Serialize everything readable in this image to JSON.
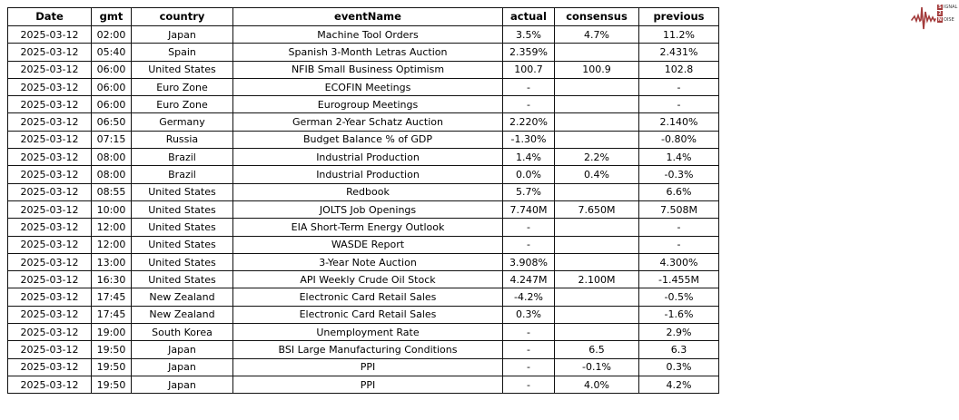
{
  "chart_data": {
    "type": "table",
    "title": "",
    "columns": [
      "Date",
      "gmt",
      "country",
      "eventName",
      "actual",
      "consensus",
      "previous"
    ],
    "rows": [
      [
        "2025-03-12",
        "02:00",
        "Japan",
        "Machine Tool Orders",
        "3.5%",
        "4.7%",
        "11.2%"
      ],
      [
        "2025-03-12",
        "05:40",
        "Spain",
        "Spanish 3-Month Letras Auction",
        "2.359%",
        "",
        "2.431%"
      ],
      [
        "2025-03-12",
        "06:00",
        "United States",
        "NFIB Small Business Optimism",
        "100.7",
        "100.9",
        "102.8"
      ],
      [
        "2025-03-12",
        "06:00",
        "Euro Zone",
        "ECOFIN Meetings",
        "-",
        "",
        "-"
      ],
      [
        "2025-03-12",
        "06:00",
        "Euro Zone",
        "Eurogroup Meetings",
        "-",
        "",
        "-"
      ],
      [
        "2025-03-12",
        "06:50",
        "Germany",
        "German 2-Year Schatz Auction",
        "2.220%",
        "",
        "2.140%"
      ],
      [
        "2025-03-12",
        "07:15",
        "Russia",
        "Budget Balance % of GDP",
        "-1.30%",
        "",
        "-0.80%"
      ],
      [
        "2025-03-12",
        "08:00",
        "Brazil",
        "Industrial Production",
        "1.4%",
        "2.2%",
        "1.4%"
      ],
      [
        "2025-03-12",
        "08:00",
        "Brazil",
        "Industrial Production",
        "0.0%",
        "0.4%",
        "-0.3%"
      ],
      [
        "2025-03-12",
        "08:55",
        "United States",
        "Redbook",
        "5.7%",
        "",
        "6.6%"
      ],
      [
        "2025-03-12",
        "10:00",
        "United States",
        "JOLTS Job Openings",
        "7.740M",
        "7.650M",
        "7.508M"
      ],
      [
        "2025-03-12",
        "12:00",
        "United States",
        "EIA Short-Term Energy Outlook",
        "-",
        "",
        "-"
      ],
      [
        "2025-03-12",
        "12:00",
        "United States",
        "WASDE Report",
        "-",
        "",
        "-"
      ],
      [
        "2025-03-12",
        "13:00",
        "United States",
        "3-Year Note Auction",
        "3.908%",
        "",
        "4.300%"
      ],
      [
        "2025-03-12",
        "16:30",
        "United States",
        "API Weekly Crude Oil Stock",
        "4.247M",
        "2.100M",
        "-1.455M"
      ],
      [
        "2025-03-12",
        "17:45",
        "New Zealand",
        "Electronic Card Retail Sales",
        "-4.2%",
        "",
        "-0.5%"
      ],
      [
        "2025-03-12",
        "17:45",
        "New Zealand",
        "Electronic Card Retail Sales",
        "0.3%",
        "",
        "-1.6%"
      ],
      [
        "2025-03-12",
        "19:00",
        "South Korea",
        "Unemployment Rate",
        "-",
        "",
        "2.9%"
      ],
      [
        "2025-03-12",
        "19:50",
        "Japan",
        "BSI Large Manufacturing Conditions",
        "-",
        "6.5",
        "6.3"
      ],
      [
        "2025-03-12",
        "19:50",
        "Japan",
        "PPI",
        "-",
        "-0.1%",
        "0.3%"
      ],
      [
        "2025-03-12",
        "19:50",
        "Japan",
        "PPI",
        "-",
        "4.0%",
        "4.2%"
      ]
    ],
    "layout": {
      "grid": "all-borders",
      "header_bold": true,
      "text_align": "center",
      "border_color": "#111111",
      "background": "#ffffff"
    }
  },
  "logo": {
    "ecg_color": "#a33b3b",
    "rows": [
      {
        "badge": "S",
        "word": "IGNAL"
      },
      {
        "badge": "2",
        "word": ""
      },
      {
        "badge": "N",
        "word": "OISE"
      }
    ]
  }
}
